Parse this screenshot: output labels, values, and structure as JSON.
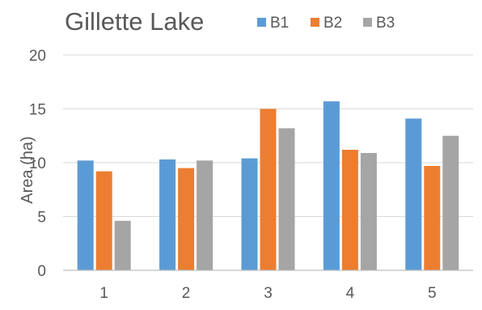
{
  "chart_data": {
    "type": "bar",
    "title": "Gillette Lake",
    "ylabel": "Area (ha)",
    "xlabel": "",
    "categories": [
      "1",
      "2",
      "3",
      "4",
      "5"
    ],
    "series": [
      {
        "name": "B1",
        "color": "#5b9bd5",
        "values": [
          10.2,
          10.3,
          10.4,
          15.7,
          14.1
        ]
      },
      {
        "name": "B2",
        "color": "#ed7d31",
        "values": [
          9.2,
          9.5,
          15.0,
          11.2,
          9.7
        ]
      },
      {
        "name": "B3",
        "color": "#a5a5a5",
        "values": [
          4.6,
          10.2,
          13.2,
          10.9,
          12.5
        ]
      }
    ],
    "ylim": [
      0,
      20
    ],
    "yticks": [
      "0",
      "5",
      "10",
      "15",
      "20"
    ],
    "grid": true,
    "legend": "top"
  }
}
